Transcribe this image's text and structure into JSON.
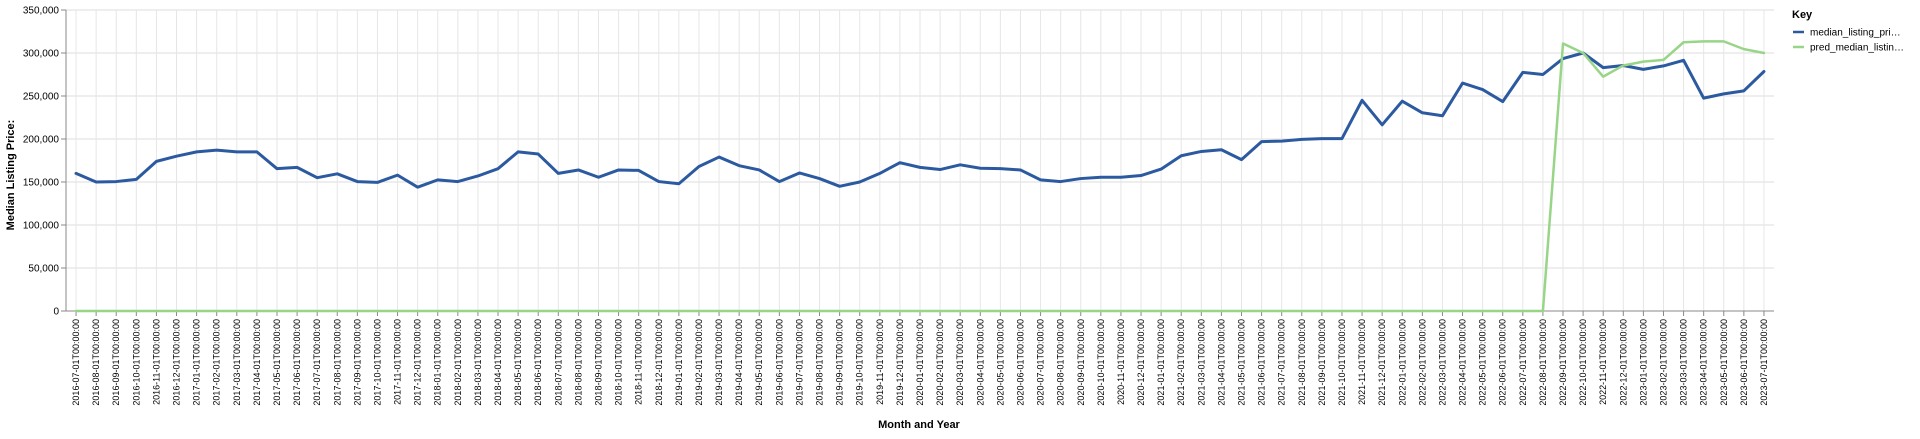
{
  "chart_data": {
    "type": "line",
    "xlabel": "Month and Year",
    "ylabel": "Median Listing Price:",
    "ylim": [
      0,
      350000
    ],
    "yticks": [
      "0",
      "50,000",
      "100,000",
      "150,000",
      "200,000",
      "250,000",
      "300,000",
      "350,000"
    ],
    "grid": true,
    "legend": {
      "title": "Key",
      "placement": "top-right"
    },
    "x": [
      "2016-07-01T00:00:00",
      "2016-08-01T00:00:00",
      "2016-09-01T00:00:00",
      "2016-10-01T00:00:00",
      "2016-11-01T00:00:00",
      "2016-12-01T00:00:00",
      "2017-01-01T00:00:00",
      "2017-02-01T00:00:00",
      "2017-03-01T00:00:00",
      "2017-04-01T00:00:00",
      "2017-05-01T00:00:00",
      "2017-06-01T00:00:00",
      "2017-07-01T00:00:00",
      "2017-08-01T00:00:00",
      "2017-09-01T00:00:00",
      "2017-10-01T00:00:00",
      "2017-11-01T00:00:00",
      "2017-12-01T00:00:00",
      "2018-01-01T00:00:00",
      "2018-02-01T00:00:00",
      "2018-03-01T00:00:00",
      "2018-04-01T00:00:00",
      "2018-05-01T00:00:00",
      "2018-06-01T00:00:00",
      "2018-07-01T00:00:00",
      "2018-08-01T00:00:00",
      "2018-09-01T00:00:00",
      "2018-10-01T00:00:00",
      "2018-11-01T00:00:00",
      "2018-12-01T00:00:00",
      "2019-01-01T00:00:00",
      "2019-02-01T00:00:00",
      "2019-03-01T00:00:00",
      "2019-04-01T00:00:00",
      "2019-05-01T00:00:00",
      "2019-06-01T00:00:00",
      "2019-07-01T00:00:00",
      "2019-08-01T00:00:00",
      "2019-09-01T00:00:00",
      "2019-10-01T00:00:00",
      "2019-11-01T00:00:00",
      "2019-12-01T00:00:00",
      "2020-01-01T00:00:00",
      "2020-02-01T00:00:00",
      "2020-03-01T00:00:00",
      "2020-04-01T00:00:00",
      "2020-05-01T00:00:00",
      "2020-06-01T00:00:00",
      "2020-07-01T00:00:00",
      "2020-08-01T00:00:00",
      "2020-09-01T00:00:00",
      "2020-10-01T00:00:00",
      "2020-11-01T00:00:00",
      "2020-12-01T00:00:00",
      "2021-01-01T00:00:00",
      "2021-02-01T00:00:00",
      "2021-03-01T00:00:00",
      "2021-04-01T00:00:00",
      "2021-05-01T00:00:00",
      "2021-06-01T00:00:00",
      "2021-07-01T00:00:00",
      "2021-08-01T00:00:00",
      "2021-09-01T00:00:00",
      "2021-10-01T00:00:00",
      "2021-11-01T00:00:00",
      "2021-12-01T00:00:00",
      "2022-01-01T00:00:00",
      "2022-02-01T00:00:00",
      "2022-03-01T00:00:00",
      "2022-04-01T00:00:00",
      "2022-05-01T00:00:00",
      "2022-06-01T00:00:00",
      "2022-07-01T00:00:00",
      "2022-08-01T00:00:00",
      "2022-09-01T00:00:00",
      "2022-10-01T00:00:00",
      "2022-11-01T00:00:00",
      "2022-12-01T00:00:00",
      "2023-01-01T00:00:00",
      "2023-02-01T00:00:00",
      "2023-03-01T00:00:00",
      "2023-04-01T00:00:00",
      "2023-05-01T00:00:00",
      "2023-06-01T00:00:00",
      "2023-07-01T00:00:00"
    ],
    "series": [
      {
        "name": "median_listing_pri…",
        "color": "#2c5aa0",
        "values": [
          160000,
          150000,
          150500,
          153000,
          174000,
          180000,
          185000,
          187000,
          185000,
          185000,
          165500,
          167000,
          155000,
          159500,
          150500,
          149500,
          158000,
          144000,
          152500,
          150500,
          157000,
          165500,
          185000,
          182500,
          160000,
          164000,
          155500,
          164000,
          163500,
          150500,
          148000,
          168000,
          179000,
          169000,
          164000,
          150500,
          160500,
          154000,
          145000,
          150000,
          160000,
          172500,
          167000,
          164500,
          170000,
          166000,
          165500,
          164000,
          152500,
          150500,
          154000,
          155500,
          155500,
          157500,
          165000,
          180500,
          185500,
          187500,
          176000,
          197000,
          197500,
          199500,
          200500,
          200500,
          245000,
          216500,
          244000,
          230500,
          227000,
          265000,
          257500,
          243500,
          277500,
          275000,
          293500,
          300000,
          283000,
          285500,
          281000,
          285000,
          291500,
          247500,
          252500,
          256000,
          278500
        ]
      },
      {
        "name": "pred_median_listin…",
        "color": "#98d588",
        "values": [
          0,
          0,
          0,
          0,
          0,
          0,
          0,
          0,
          0,
          0,
          0,
          0,
          0,
          0,
          0,
          0,
          0,
          0,
          0,
          0,
          0,
          0,
          0,
          0,
          0,
          0,
          0,
          0,
          0,
          0,
          0,
          0,
          0,
          0,
          0,
          0,
          0,
          0,
          0,
          0,
          0,
          0,
          0,
          0,
          0,
          0,
          0,
          0,
          0,
          0,
          0,
          0,
          0,
          0,
          0,
          0,
          0,
          0,
          0,
          0,
          0,
          0,
          0,
          0,
          0,
          0,
          0,
          0,
          0,
          0,
          0,
          0,
          0,
          0,
          311000,
          300000,
          272500,
          285500,
          290000,
          292000,
          312500,
          313500,
          313500,
          304500,
          300000
        ]
      }
    ]
  }
}
